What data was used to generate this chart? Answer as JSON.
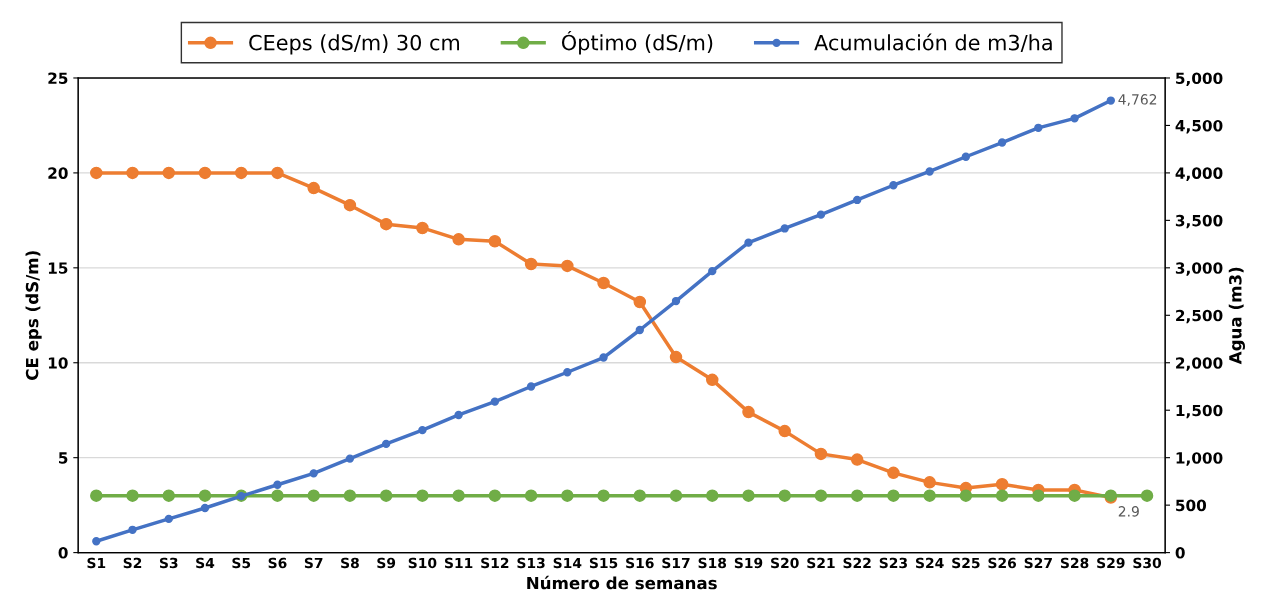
{
  "chart_data": {
    "type": "line",
    "xlabel": "Número de semanas",
    "ylabel": "CE eps (dS/m)",
    "y2label": "Agua (m3)",
    "categories": [
      "S1",
      "S2",
      "S3",
      "S4",
      "S5",
      "S6",
      "S7",
      "S8",
      "S9",
      "S10",
      "S11",
      "S12",
      "S13",
      "S14",
      "S15",
      "S16",
      "S17",
      "S18",
      "S19",
      "S20",
      "S21",
      "S22",
      "S23",
      "S24",
      "S25",
      "S26",
      "S27",
      "S28",
      "S29",
      "S30"
    ],
    "series": [
      {
        "name": "CEeps (dS/m) 30 cm",
        "color": "#ed7d31",
        "values": [
          20,
          20,
          20,
          20,
          20,
          20,
          19.2,
          18.3,
          17.3,
          17.1,
          16.5,
          16.4,
          15.2,
          15.1,
          14.2,
          13.2,
          10.3,
          9.1,
          7.4,
          6.4,
          5.2,
          4.9,
          4.2,
          3.7,
          3.4,
          3.6,
          3.3,
          3.3,
          2.9,
          null
        ],
        "value_labels": [
          null,
          null,
          null,
          null,
          null,
          null,
          null,
          null,
          null,
          null,
          null,
          null,
          null,
          null,
          null,
          null,
          null,
          null,
          null,
          null,
          null,
          null,
          null,
          null,
          null,
          null,
          null,
          null,
          "2.9",
          null
        ]
      },
      {
        "name": "Óptimo (dS/m)",
        "color": "#70ad47",
        "values": [
          3,
          3,
          3,
          3,
          3,
          3,
          3,
          3,
          3,
          3,
          3,
          3,
          3,
          3,
          3,
          3,
          3,
          3,
          3,
          3,
          3,
          3,
          3,
          3,
          3,
          3,
          3,
          3,
          3,
          3
        ]
      },
      {
        "name": "Acumulación de m3/ha",
        "color": "#4472c4",
        "axis": "y2",
        "values": [
          120,
          240,
          355,
          470,
          595,
          715,
          835,
          990,
          1145,
          1290,
          1450,
          1590,
          1750,
          1900,
          2055,
          2345,
          2650,
          2965,
          3265,
          3415,
          3560,
          3715,
          3870,
          4015,
          4170,
          4320,
          4475,
          4575,
          4762,
          null
        ],
        "value_labels": [
          null,
          null,
          null,
          null,
          null,
          null,
          null,
          null,
          null,
          null,
          null,
          null,
          null,
          null,
          null,
          null,
          null,
          null,
          null,
          null,
          null,
          null,
          null,
          null,
          null,
          null,
          null,
          null,
          "4,762",
          null
        ]
      }
    ],
    "ylim": [
      0,
      25
    ],
    "yticks": [
      0,
      5,
      10,
      15,
      20,
      25
    ],
    "y2lim": [
      0,
      5000
    ],
    "y2ticks": [
      0,
      {
        "value": 500,
        "label": "500"
      },
      {
        "value": 1000,
        "label": "1,000"
      },
      {
        "value": 1500,
        "label": "1,500"
      },
      {
        "value": 2000,
        "label": "2,000"
      },
      {
        "value": 2500,
        "label": "2,500"
      },
      {
        "value": 3000,
        "label": "3,000"
      },
      {
        "value": 3500,
        "label": "3,500"
      },
      {
        "value": 4000,
        "label": "4,000"
      },
      {
        "value": 4500,
        "label": "4,500"
      },
      {
        "value": 5000,
        "label": "5,000"
      }
    ],
    "grid": "y",
    "legend": "top",
    "marker": "circle",
    "line_style": "solid"
  }
}
